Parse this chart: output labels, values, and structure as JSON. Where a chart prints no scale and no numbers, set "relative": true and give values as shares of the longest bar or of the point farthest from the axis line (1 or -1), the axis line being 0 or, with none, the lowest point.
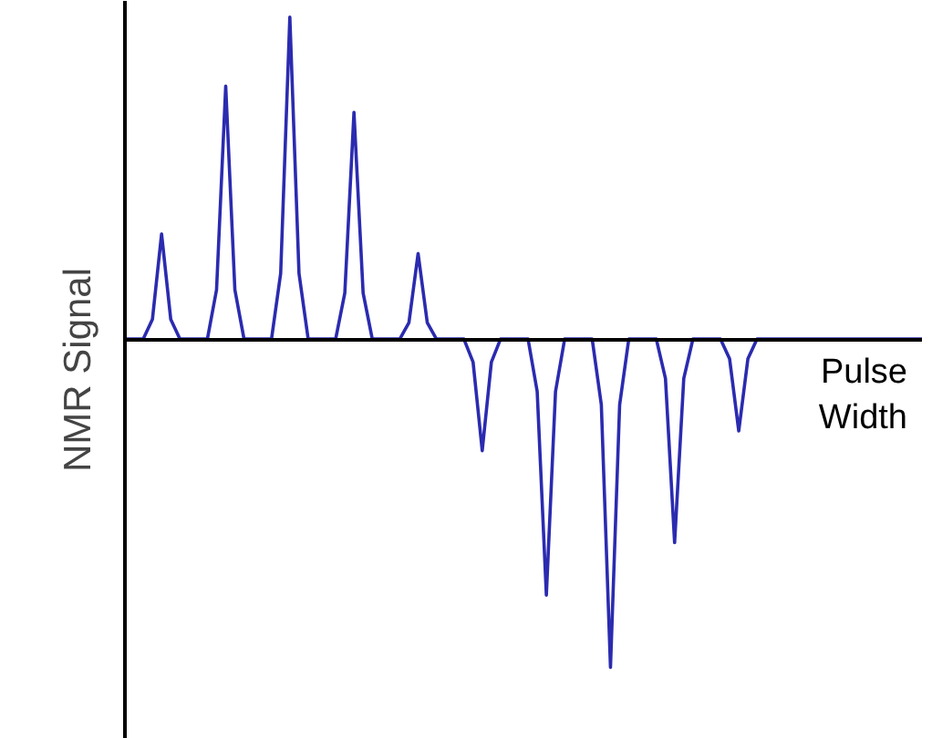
{
  "chart_data": {
    "type": "line",
    "relative": true,
    "xlabel": "Pulse Width",
    "ylabel": "NMR Signal",
    "grid": false,
    "marker": "none",
    "line_style": "solid",
    "categories": [
      null,
      null,
      null,
      null,
      null,
      null,
      null,
      null,
      null,
      null,
      null,
      null,
      null,
      null,
      null,
      null,
      null,
      null,
      null,
      null,
      null,
      null,
      null,
      null,
      null,
      null,
      null,
      null,
      null,
      null,
      null,
      null,
      null,
      null,
      null,
      null,
      null,
      null,
      null,
      null,
      null,
      null,
      null,
      null,
      null,
      null,
      null,
      null,
      null,
      null,
      null,
      null,
      null,
      null,
      null,
      null,
      null,
      null,
      null,
      null,
      null,
      null,
      null,
      null,
      null,
      null,
      null,
      null,
      null,
      null,
      null,
      null,
      null,
      null,
      null,
      null,
      null,
      null,
      null,
      null,
      null,
      null,
      null,
      null,
      null,
      null,
      null,
      null
    ],
    "series": [
      {
        "color": "#2b2bb0",
        "values": [
          0,
          0,
          0,
          0.06,
          0.32,
          0.06,
          0,
          0,
          0,
          0,
          0.15,
          0.77,
          0.15,
          0,
          0,
          0,
          0,
          0.2,
          0.98,
          0.2,
          0,
          0,
          0,
          0,
          0.14,
          0.69,
          0.14,
          0,
          0,
          0,
          0,
          0.05,
          0.26,
          0.05,
          0,
          0,
          0,
          0,
          -0.07,
          -0.34,
          -0.07,
          0,
          0,
          0,
          0,
          -0.16,
          -0.78,
          -0.16,
          0,
          0,
          0,
          0,
          -0.2,
          -1,
          -0.2,
          0,
          0,
          0,
          0,
          -0.12,
          -0.62,
          -0.12,
          0,
          0,
          0,
          0,
          -0.06,
          -0.28,
          -0.06,
          0,
          0,
          0,
          0,
          0,
          0,
          0,
          0,
          0,
          0,
          0,
          0,
          0,
          0,
          0,
          0,
          0,
          0,
          0
        ]
      }
    ]
  }
}
